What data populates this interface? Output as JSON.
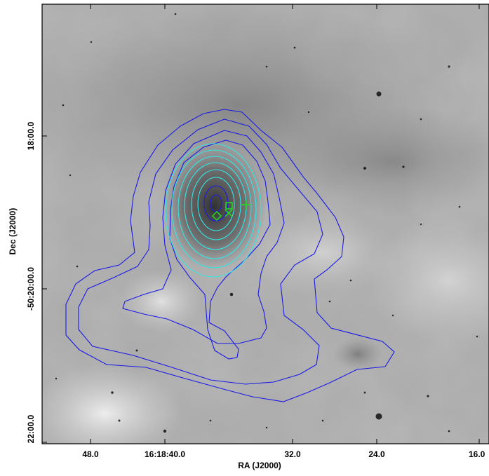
{
  "figure": {
    "x_axis": {
      "label": "RA (J2000)",
      "ticks": [
        "48.0",
        "16:18:40.0",
        "32.0",
        "24.0",
        "16.0"
      ]
    },
    "y_axis": {
      "label": "Dec (J2000)",
      "ticks": [
        "18:00.0",
        "-50:20:00.0",
        "22:00.0"
      ]
    },
    "markers": [
      {
        "symbol": "diamond",
        "name": "diamond-marker"
      },
      {
        "symbol": "square",
        "name": "square-marker"
      },
      {
        "symbol": "cross",
        "name": "x-marker"
      },
      {
        "symbol": "plus",
        "name": "plus-marker"
      }
    ],
    "colors": {
      "outer_contours": "#1a1ae6",
      "inner_contours": "#33e6e6",
      "markers": "#22dd22",
      "background": "#ffffff"
    },
    "contours": {
      "outer_levels": 4,
      "inner_levels": 8
    }
  }
}
